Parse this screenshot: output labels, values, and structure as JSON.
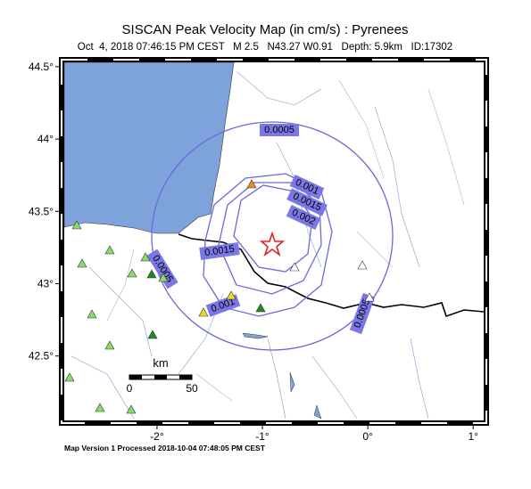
{
  "map": {
    "title": "SISCAN Peak Velocity Map (in cm/s) : Pyrenees",
    "subtitle": "Oct  4, 2018 07:46:15 PM CEST   M 2.5   N43.27 W0.91   Depth: 5.9km   ID:17302",
    "lon_range": [
      -2.88,
      1.1
    ],
    "lat_range": [
      42.055,
      44.53
    ],
    "lon_ticks": [
      {
        "value": -2,
        "label": "-2°"
      },
      {
        "value": -1,
        "label": "-1°"
      },
      {
        "value": 0,
        "label": "0°"
      },
      {
        "value": 1,
        "label": "1°"
      }
    ],
    "lat_ticks": [
      {
        "value": 42.5,
        "label": "42.5°"
      },
      {
        "value": 43,
        "label": "43°"
      },
      {
        "value": 43.5,
        "label": "43.5°"
      },
      {
        "value": 44,
        "label": "44°"
      },
      {
        "value": 44.5,
        "label": "44.5°"
      }
    ],
    "contours": [
      0.0005,
      0.001,
      0.0015,
      0.002
    ],
    "scale": {
      "title": "km",
      "labels": [
        "0",
        "50"
      ]
    },
    "footer": "Map Version 1 Processed 2018-10-04 07:48:05 PM CEST"
  }
}
